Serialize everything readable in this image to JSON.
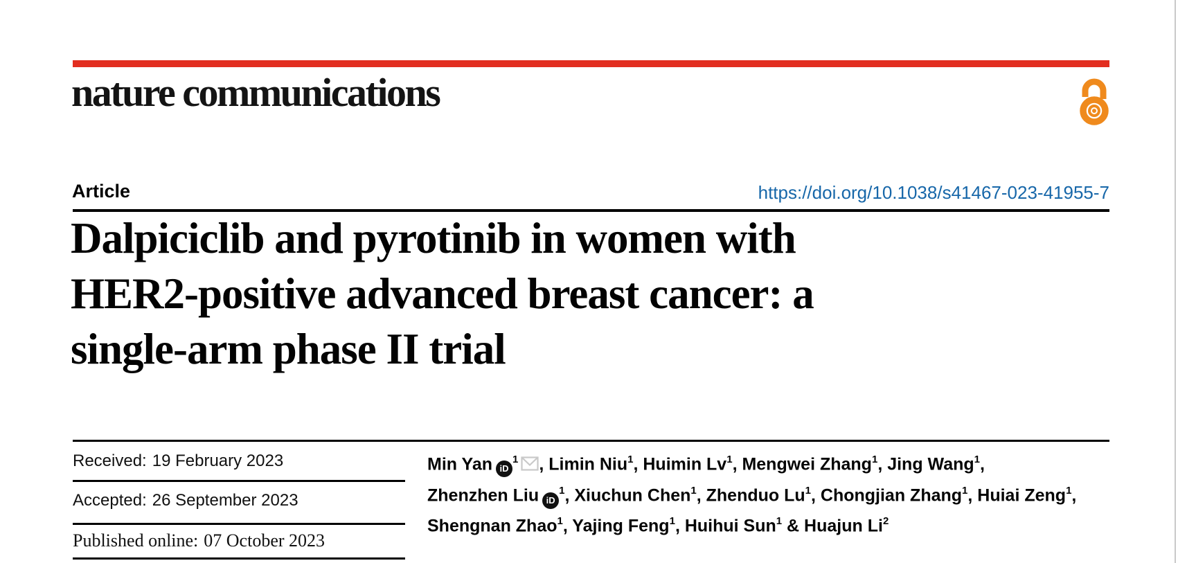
{
  "journal": {
    "logo_text": "nature communications"
  },
  "article": {
    "kicker": "Article",
    "doi": "https://doi.org/10.1038/s41467-023-41955-7",
    "title_lines": [
      "Dalpiciclib and pyrotinib in women with",
      "HER2-positive advanced breast cancer: a",
      "single-arm phase II trial"
    ]
  },
  "dates": {
    "received_label": "Received:",
    "received": "19 February 2023",
    "accepted_label": "Accepted:",
    "accepted": "26 September 2023",
    "published_label": "Published online:",
    "published": "07 October 2023"
  },
  "authors": {
    "lines": [
      [
        {
          "t": "text",
          "v": "Min Yan"
        },
        {
          "t": "orcid"
        },
        {
          "t": "sup",
          "v": "1"
        },
        {
          "t": "mail"
        },
        {
          "t": "text",
          "v": ", Limin Niu"
        },
        {
          "t": "sup",
          "v": "1"
        },
        {
          "t": "text",
          "v": ", Huimin Lv"
        },
        {
          "t": "sup",
          "v": "1"
        },
        {
          "t": "text",
          "v": ", Mengwei Zhang"
        },
        {
          "t": "sup",
          "v": "1"
        },
        {
          "t": "text",
          "v": ", Jing Wang"
        },
        {
          "t": "sup",
          "v": "1"
        },
        {
          "t": "text",
          "v": ","
        }
      ],
      [
        {
          "t": "text",
          "v": "Zhenzhen Liu"
        },
        {
          "t": "orcid"
        },
        {
          "t": "sup",
          "v": "1"
        },
        {
          "t": "text",
          "v": ", Xiuchun Chen"
        },
        {
          "t": "sup",
          "v": "1"
        },
        {
          "t": "text",
          "v": ", Zhenduo Lu"
        },
        {
          "t": "sup",
          "v": "1"
        },
        {
          "t": "text",
          "v": ", Chongjian Zhang"
        },
        {
          "t": "sup",
          "v": "1"
        },
        {
          "t": "text",
          "v": ", Huiai Zeng"
        },
        {
          "t": "sup",
          "v": "1"
        },
        {
          "t": "text",
          "v": ","
        }
      ],
      [
        {
          "t": "text",
          "v": "Shengnan Zhao"
        },
        {
          "t": "sup",
          "v": "1"
        },
        {
          "t": "text",
          "v": ", Yajing Feng"
        },
        {
          "t": "sup",
          "v": "1"
        },
        {
          "t": "text",
          "v": ", Huihui Sun"
        },
        {
          "t": "sup",
          "v": "1"
        },
        {
          "t": "text",
          "v": " & Huajun Li"
        },
        {
          "t": "sup",
          "v": "2"
        }
      ]
    ]
  },
  "icons": {
    "orcid_glyph": "iD",
    "email": "envelope",
    "open_access": "open-lock"
  },
  "colors": {
    "brand_red": "#E22E20",
    "open_access_orange": "#EF8A1D",
    "link_blue": "#1767A9"
  }
}
